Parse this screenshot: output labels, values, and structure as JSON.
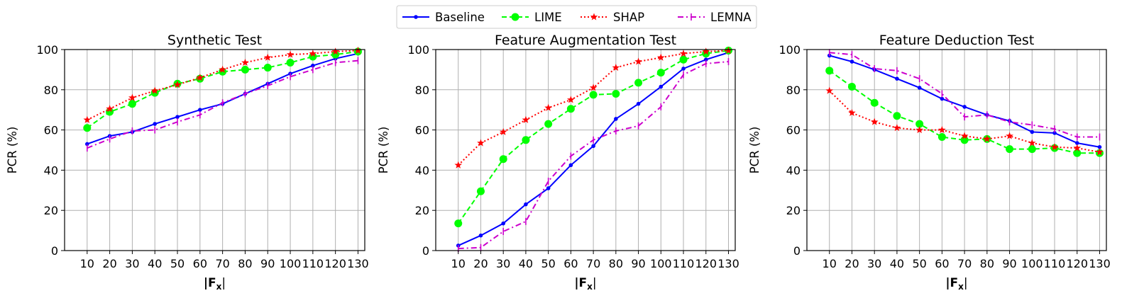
{
  "legend": {
    "entries": [
      {
        "label": "Baseline",
        "color": "#0000ff",
        "marker": "circle-small",
        "dash": "solid"
      },
      {
        "label": "LIME",
        "color": "#00ff00",
        "marker": "circle",
        "dash": "dashed"
      },
      {
        "label": "SHAP",
        "color": "#ff0000",
        "marker": "star",
        "dash": "dotted"
      },
      {
        "label": "LEMNA",
        "color": "#cc00cc",
        "marker": "vline",
        "dash": "dashdot"
      }
    ],
    "placement": "top-center"
  },
  "chart_data": [
    {
      "type": "line",
      "title": "Synthetic Test",
      "xlabel": "|F",
      "xlabel_sub": "x",
      "ylabel": "PCR (%)",
      "ylim": [
        0,
        100
      ],
      "yticks": [
        0,
        20,
        40,
        60,
        80,
        100
      ],
      "grid": true,
      "x": [
        10,
        20,
        30,
        40,
        50,
        60,
        70,
        80,
        90,
        100,
        110,
        120,
        130
      ],
      "series": [
        {
          "name": "Baseline",
          "values": [
            53,
            57,
            59,
            63,
            66.5,
            70,
            73,
            78,
            83,
            88,
            92,
            95.5,
            98
          ]
        },
        {
          "name": "LIME",
          "values": [
            61,
            69,
            73,
            78.5,
            83,
            85.5,
            89,
            90,
            91,
            93.5,
            96.5,
            97.5,
            99
          ]
        },
        {
          "name": "SHAP",
          "values": [
            65,
            70.5,
            76,
            79.5,
            82.5,
            86,
            90,
            93.5,
            96,
            97.5,
            98,
            99,
            99.5
          ]
        },
        {
          "name": "LEMNA",
          "values": [
            51,
            55.5,
            59.5,
            60,
            64,
            67.5,
            73.5,
            78,
            82,
            86.5,
            90,
            93.5,
            94.5
          ]
        }
      ]
    },
    {
      "type": "line",
      "title": "Feature Augmentation Test",
      "xlabel": "|F",
      "xlabel_sub": "x",
      "ylabel": "PCR (%)",
      "ylim": [
        0,
        100
      ],
      "yticks": [
        0,
        20,
        40,
        60,
        80,
        100
      ],
      "grid": true,
      "x": [
        10,
        20,
        30,
        40,
        50,
        60,
        70,
        80,
        90,
        100,
        110,
        120,
        130
      ],
      "series": [
        {
          "name": "Baseline",
          "values": [
            2.5,
            7.5,
            13.5,
            23,
            31,
            42.5,
            52,
            65.5,
            73,
            81.5,
            90.5,
            95,
            98.5
          ]
        },
        {
          "name": "LIME",
          "values": [
            13.5,
            29.5,
            45.5,
            55,
            63,
            70.5,
            77.5,
            78,
            83.5,
            88.5,
            95,
            98,
            99.5
          ]
        },
        {
          "name": "SHAP",
          "values": [
            42.5,
            53.5,
            59,
            65,
            71,
            75,
            81,
            91,
            94,
            96,
            98,
            99,
            99.5
          ]
        },
        {
          "name": "LEMNA",
          "values": [
            1,
            1.5,
            9.5,
            14.5,
            34.5,
            47,
            55,
            59.5,
            62,
            71.5,
            87.5,
            93,
            94
          ]
        }
      ]
    },
    {
      "type": "line",
      "title": "Feature Deduction Test",
      "xlabel": "|F",
      "xlabel_sub": "x",
      "ylabel": "PCR (%)",
      "ylim": [
        0,
        100
      ],
      "yticks": [
        0,
        20,
        40,
        60,
        80,
        100
      ],
      "grid": true,
      "x": [
        10,
        20,
        30,
        40,
        50,
        60,
        70,
        80,
        90,
        100,
        110,
        120,
        130
      ],
      "series": [
        {
          "name": "Baseline",
          "values": [
            97,
            94,
            90,
            85.5,
            81,
            75.5,
            71.5,
            67.5,
            64.5,
            59,
            58.5,
            53.5,
            51.5
          ]
        },
        {
          "name": "LIME",
          "values": [
            89.5,
            81.5,
            73.5,
            67,
            63,
            56.5,
            55,
            55.5,
            50.5,
            50.5,
            51,
            48.5,
            48.5
          ]
        },
        {
          "name": "SHAP",
          "values": [
            79.5,
            68.5,
            64,
            61,
            60,
            60,
            57,
            55.5,
            57,
            53.5,
            51.5,
            51,
            49
          ]
        },
        {
          "name": "LEMNA",
          "values": [
            98.5,
            97.5,
            90.5,
            89.5,
            85.5,
            78,
            66.5,
            67.5,
            64,
            62.5,
            60.5,
            56.5,
            56.5
          ]
        }
      ]
    }
  ]
}
